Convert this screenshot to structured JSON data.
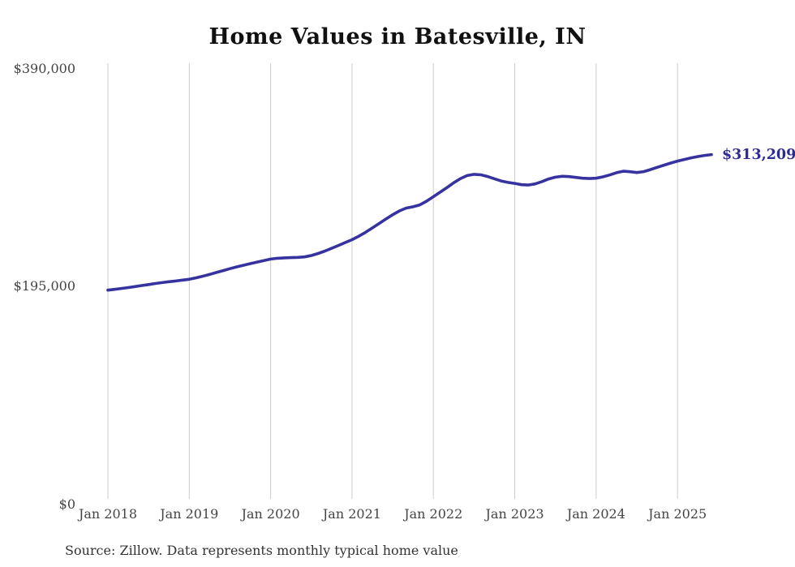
{
  "chart": {
    "title": "Home Values in Batesville, IN",
    "source_note": "Source: Zillow. Data represents monthly typical home value",
    "end_label": "$313,209",
    "colors": {
      "line": "#3632a0",
      "end_label": "#2d2b94",
      "grid": "#cccccc",
      "title": "#111111",
      "tick": "#444444",
      "source": "#333333"
    }
  },
  "chart_data": {
    "type": "line",
    "title": "Home Values in Batesville, IN",
    "xlabel": "",
    "ylabel": "",
    "x_start": "Jan 2018",
    "x_end": "Jun 2025",
    "x_tick_labels": [
      "Jan 2018",
      "Jan 2019",
      "Jan 2020",
      "Jan 2021",
      "Jan 2022",
      "Jan 2023",
      "Jan 2024",
      "Jan 2025"
    ],
    "x_tick_month_indices": [
      0,
      12,
      24,
      36,
      48,
      60,
      72,
      84
    ],
    "y_ticks": [
      {
        "value": 0,
        "label": "$0"
      },
      {
        "value": 195000,
        "label": "$195,000"
      },
      {
        "value": 390000,
        "label": "$390,000"
      }
    ],
    "ylim": [
      0,
      390000
    ],
    "grid": "vertical-only",
    "legend": "none",
    "final_value": 313209,
    "series": [
      {
        "name": "Monthly typical home value",
        "values": [
          191800,
          192500,
          193300,
          194100,
          195000,
          195900,
          196800,
          197700,
          198500,
          199300,
          200000,
          200800,
          201500,
          202800,
          204300,
          205900,
          207600,
          209300,
          211000,
          212600,
          214100,
          215500,
          216900,
          218300,
          219600,
          220300,
          220700,
          220900,
          221100,
          221600,
          222800,
          224600,
          226800,
          229300,
          231800,
          234400,
          237000,
          240100,
          243600,
          247500,
          251500,
          255500,
          259400,
          262800,
          265300,
          266500,
          268200,
          271500,
          275500,
          279600,
          283700,
          288000,
          291800,
          294500,
          295600,
          295100,
          293600,
          291600,
          289600,
          288300,
          287400,
          286300,
          286000,
          287000,
          289000,
          291400,
          293000,
          293800,
          293500,
          292800,
          292100,
          291800,
          292100,
          293300,
          295000,
          297000,
          298300,
          297900,
          297200,
          298000,
          299800,
          301800,
          303800,
          305700,
          307400,
          308900,
          310300,
          311500,
          312500,
          313209
        ]
      }
    ]
  }
}
